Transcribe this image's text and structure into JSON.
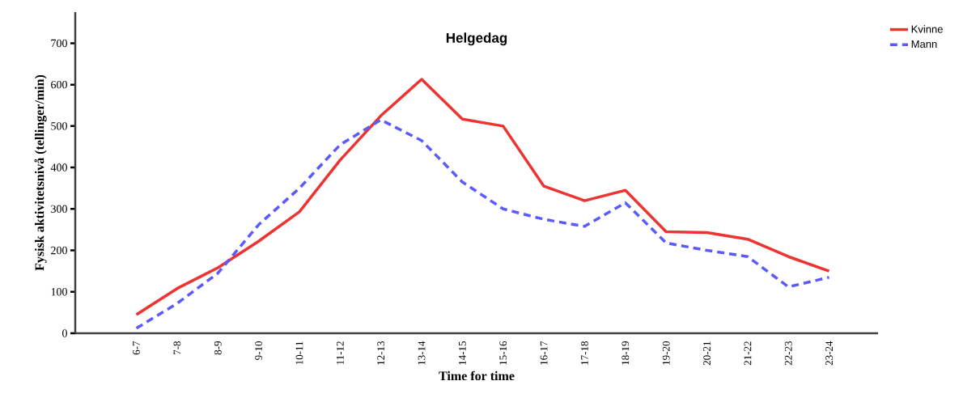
{
  "chart_data": {
    "type": "line",
    "title": "Helgedag",
    "xlabel": "Time for time",
    "ylabel": "Fysisk aktivitetsnivå (tellinger/min)",
    "categories": [
      "6-7",
      "7-8",
      "8-9",
      "9-10",
      "10-11",
      "11-12",
      "12-13",
      "13-14",
      "14-15",
      "15-16",
      "16-17",
      "17-18",
      "18-19",
      "19-20",
      "20-21",
      "21-22",
      "22-23",
      "23-24"
    ],
    "series": [
      {
        "name": "Kvinne",
        "color": "#ee3333",
        "line_style": "solid",
        "values": [
          45,
          108,
          158,
          222,
          293,
          418,
          525,
          613,
          517,
          500,
          355,
          320,
          345,
          245,
          243,
          227,
          185,
          150
        ]
      },
      {
        "name": "Mann",
        "color": "#5a5aff",
        "line_style": "dashed",
        "values": [
          12,
          72,
          145,
          262,
          350,
          455,
          515,
          465,
          365,
          300,
          275,
          258,
          315,
          218,
          200,
          185,
          112,
          135
        ]
      }
    ],
    "ylim": [
      0,
      775
    ],
    "yticks": [
      0,
      100,
      200,
      300,
      400,
      500,
      600,
      700
    ],
    "grid": false,
    "legend": "top right",
    "marker": "none"
  }
}
